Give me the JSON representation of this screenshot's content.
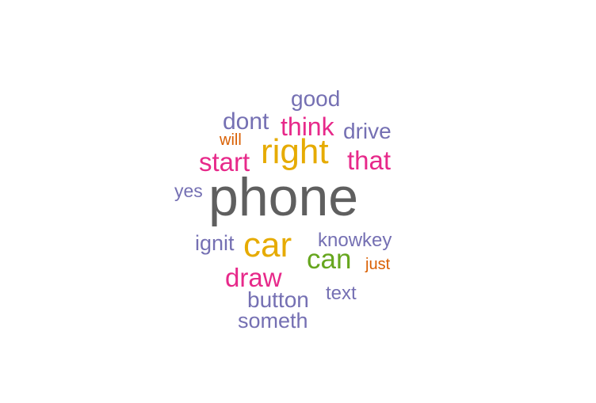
{
  "words": [
    {
      "text": "phone",
      "color": "#5f5f5f"
    },
    {
      "text": "right",
      "color": "#e6ab02"
    },
    {
      "text": "car",
      "color": "#e6ab02"
    },
    {
      "text": "can",
      "color": "#66a61e"
    },
    {
      "text": "draw",
      "color": "#e7298a"
    },
    {
      "text": "start",
      "color": "#e7298a"
    },
    {
      "text": "that",
      "color": "#e7298a"
    },
    {
      "text": "think",
      "color": "#e7298a"
    },
    {
      "text": "dont",
      "color": "#7570b3"
    },
    {
      "text": "good",
      "color": "#7570b3"
    },
    {
      "text": "drive",
      "color": "#7570b3"
    },
    {
      "text": "button",
      "color": "#7570b3"
    },
    {
      "text": "someth",
      "color": "#7570b3"
    },
    {
      "text": "ignit",
      "color": "#7570b3"
    },
    {
      "text": "knowkey",
      "color": "#7570b3"
    },
    {
      "text": "text",
      "color": "#7570b3"
    },
    {
      "text": "yes",
      "color": "#7570b3"
    },
    {
      "text": "will",
      "color": "#d95f02"
    },
    {
      "text": "just",
      "color": "#d95f02"
    }
  ]
}
